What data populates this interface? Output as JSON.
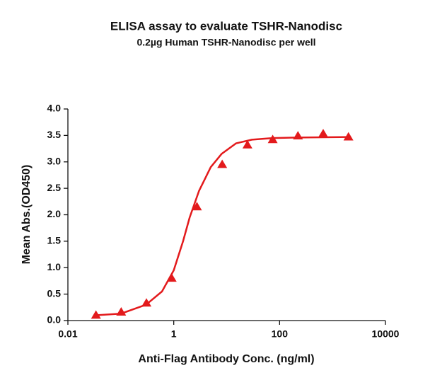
{
  "chart_data": {
    "type": "scatter",
    "title": "ELISA assay to evaluate TSHR-Nanodisc",
    "subtitle": "0.2µg Human TSHR-Nanodisc per well",
    "xlabel": "Anti-Flag Antibody Conc. (ng/ml)",
    "ylabel": "Mean Abs.(OD450)",
    "xscale": "log",
    "xlim": [
      0.01,
      10000
    ],
    "xticks": [
      0.01,
      1,
      100,
      10000
    ],
    "ylim": [
      0,
      4
    ],
    "yticks": [
      {
        "value": 0,
        "label": "0.0"
      },
      0.5,
      {
        "value": 1,
        "label": "1.0"
      },
      1.5,
      {
        "value": 2,
        "label": "2.0"
      },
      2.5,
      {
        "value": 3,
        "label": "3.0"
      },
      3.5,
      {
        "value": 4,
        "label": "4.0"
      }
    ],
    "series": [
      {
        "color": "#e31a1c",
        "marker": "triangle",
        "x": [
          0.0339,
          0.1016,
          0.3048,
          0.9145,
          2.743,
          8.23,
          24.69,
          74.07,
          222.2,
          666.7,
          2000
        ],
        "values": [
          0.1,
          0.16,
          0.33,
          0.8,
          2.15,
          2.95,
          3.32,
          3.42,
          3.49,
          3.53,
          3.47
        ]
      }
    ],
    "curve": {
      "x": [
        0.0339,
        0.1,
        0.3,
        0.6,
        1,
        1.5,
        2,
        3,
        5,
        8,
        15,
        30,
        74,
        200,
        2000
      ],
      "values": [
        0.1,
        0.13,
        0.3,
        0.55,
        0.95,
        1.5,
        1.95,
        2.45,
        2.9,
        3.15,
        3.35,
        3.42,
        3.45,
        3.46,
        3.47
      ]
    }
  }
}
